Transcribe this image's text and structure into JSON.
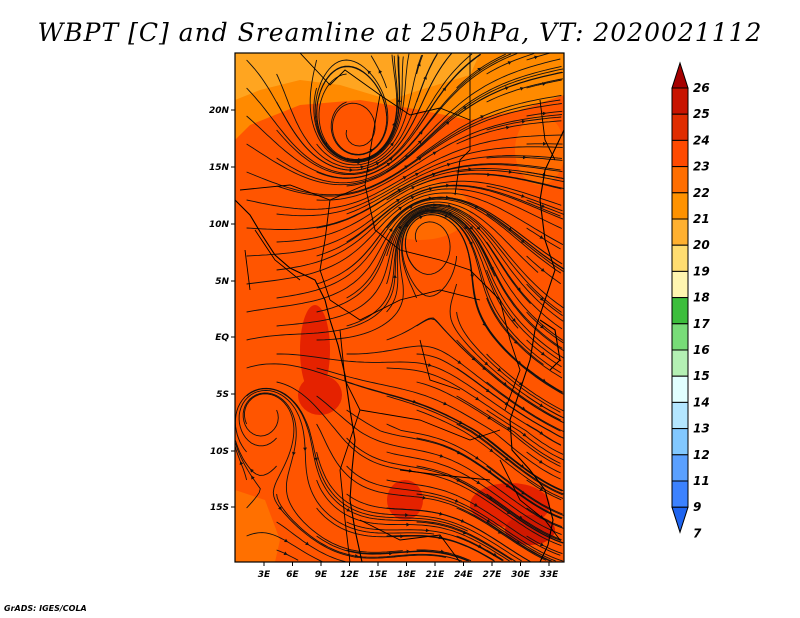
{
  "title": "WBPT [C] and Sreamline at 250hPa, VT: 2020021112",
  "credit": "GrADS: IGES/COLA",
  "map": {
    "lat_labels": [
      "20N",
      "15N",
      "10N",
      "5N",
      "EQ",
      "5S",
      "10S",
      "15S"
    ],
    "lon_labels": [
      "3E",
      "6E",
      "9E",
      "12E",
      "15E",
      "18E",
      "21E",
      "24E",
      "27E",
      "30E",
      "33E"
    ],
    "field_colors": {
      "base": "#ff5500",
      "warm": "#e52200",
      "orange": "#ff7a00",
      "yellow": "#ffa500"
    }
  },
  "colorbar": {
    "labels": [
      "26",
      "25",
      "24",
      "23",
      "22",
      "21",
      "20",
      "19",
      "18",
      "17",
      "16",
      "15",
      "14",
      "13",
      "12",
      "11",
      "9",
      "7"
    ],
    "colors": [
      "#a50000",
      "#c81400",
      "#e02d00",
      "#ff4a00",
      "#ff6e00",
      "#ff9200",
      "#ffb030",
      "#ffdc70",
      "#fff5b0",
      "#3cbe3c",
      "#78dc78",
      "#b4f0b4",
      "#e1ffff",
      "#b4e6ff",
      "#82c8ff",
      "#5aa0ff",
      "#3c82ff",
      "#1e64f0"
    ]
  }
}
